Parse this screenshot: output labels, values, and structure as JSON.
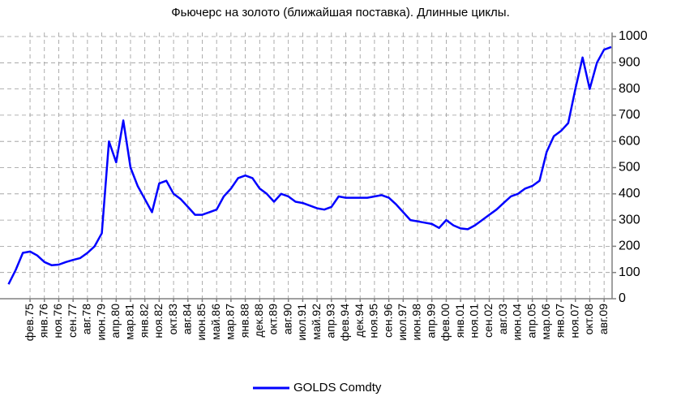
{
  "chart_data": {
    "type": "line",
    "title": "Фьючерс на золото (ближайшая поставка). Длинные циклы.",
    "categories": [
      null,
      null,
      null,
      "фев.75",
      null,
      "янв.76",
      null,
      "ноя.76",
      null,
      "сен.77",
      null,
      "авг.78",
      null,
      "июн.79",
      null,
      "апр.80",
      null,
      "мар.81",
      null,
      "янв.82",
      null,
      "ноя.82",
      null,
      "окт.83",
      null,
      "авг.84",
      null,
      "июн.85",
      null,
      "май.86",
      null,
      "мар.87",
      null,
      "янв.88",
      null,
      "дек.88",
      null,
      "окт.89",
      null,
      "авг.90",
      null,
      "июл.91",
      null,
      "май.92",
      null,
      "апр.93",
      null,
      "фев.94",
      null,
      "дек.94",
      null,
      "ноя.95",
      null,
      "сен.96",
      null,
      "июл.97",
      null,
      "июн.98",
      null,
      "апр.99",
      null,
      "фев.00",
      null,
      "янв.01",
      null,
      "ноя.01",
      null,
      "сен.02",
      null,
      "авг.03",
      null,
      "июн.04",
      null,
      "апр.05",
      null,
      "мар.06",
      null,
      "янв.07",
      null,
      "ноя.07",
      null,
      "окт.08",
      null,
      "авг.09",
      null
    ],
    "series": [
      {
        "name": "GOLDS Comdty",
        "color": "#0000ff",
        "values": [
          55,
          110,
          175,
          180,
          165,
          140,
          128,
          130,
          140,
          148,
          155,
          175,
          200,
          250,
          600,
          520,
          680,
          500,
          430,
          380,
          330,
          440,
          450,
          400,
          380,
          350,
          320,
          320,
          330,
          340,
          390,
          420,
          460,
          470,
          460,
          420,
          400,
          370,
          400,
          390,
          370,
          365,
          355,
          345,
          340,
          350,
          390,
          385,
          385,
          385,
          385,
          390,
          395,
          385,
          360,
          330,
          300,
          295,
          290,
          285,
          270,
          300,
          280,
          268,
          265,
          280,
          300,
          320,
          340,
          365,
          390,
          400,
          420,
          430,
          450,
          560,
          620,
          640,
          670,
          800,
          920,
          800,
          900,
          950,
          960
        ]
      }
    ],
    "ylim": [
      0,
      1000
    ],
    "yticks": [
      0,
      100,
      200,
      300,
      400,
      500,
      600,
      700,
      800,
      900,
      1000
    ],
    "grid": true,
    "legend": "bottom"
  }
}
